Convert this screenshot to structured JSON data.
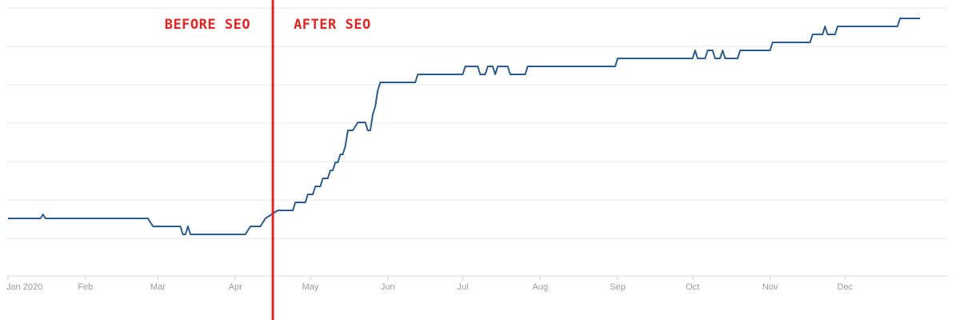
{
  "chart_data": {
    "type": "line",
    "title": "",
    "xlabel": "",
    "ylabel": "",
    "x_ticks": [
      "Jan 2020",
      "Feb",
      "Mar",
      "Apr",
      "May",
      "Jun",
      "Jul",
      "Aug",
      "Sep",
      "Oct",
      "Nov",
      "Dec"
    ],
    "x_range": [
      "2020-01-01",
      "2020-12-31"
    ],
    "y_axis_labels_visible": false,
    "grid": "horizontal",
    "line_color": "#2b5a8c",
    "marker_color": "#e02424",
    "marker_date": "2020-04-16",
    "annotations": {
      "before": "BEFORE SEO",
      "after": "AFTER SEO"
    },
    "series": [
      {
        "values": [
          [
            "2020-01-01",
            72
          ],
          [
            "2020-01-14",
            72
          ],
          [
            "2020-01-15",
            77
          ],
          [
            "2020-01-16",
            72
          ],
          [
            "2020-02-26",
            72
          ],
          [
            "2020-02-28",
            62
          ],
          [
            "2020-03-10",
            62
          ],
          [
            "2020-03-11",
            52
          ],
          [
            "2020-03-12",
            52
          ],
          [
            "2020-03-13",
            62
          ],
          [
            "2020-03-14",
            52
          ],
          [
            "2020-04-05",
            52
          ],
          [
            "2020-04-07",
            62
          ],
          [
            "2020-04-11",
            62
          ],
          [
            "2020-04-13",
            72
          ],
          [
            "2020-04-18",
            82
          ],
          [
            "2020-04-24",
            82
          ],
          [
            "2020-04-25",
            92
          ],
          [
            "2020-04-29",
            92
          ],
          [
            "2020-04-30",
            102
          ],
          [
            "2020-05-02",
            102
          ],
          [
            "2020-05-03",
            112
          ],
          [
            "2020-05-05",
            112
          ],
          [
            "2020-05-06",
            122
          ],
          [
            "2020-05-08",
            122
          ],
          [
            "2020-05-09",
            132
          ],
          [
            "2020-05-10",
            132
          ],
          [
            "2020-05-11",
            142
          ],
          [
            "2020-05-12",
            142
          ],
          [
            "2020-05-13",
            152
          ],
          [
            "2020-05-14",
            152
          ],
          [
            "2020-05-15",
            162
          ],
          [
            "2020-05-16",
            182
          ],
          [
            "2020-05-18",
            182
          ],
          [
            "2020-05-20",
            192
          ],
          [
            "2020-05-23",
            192
          ],
          [
            "2020-05-24",
            182
          ],
          [
            "2020-05-25",
            182
          ],
          [
            "2020-05-26",
            202
          ],
          [
            "2020-05-27",
            212
          ],
          [
            "2020-05-28",
            232
          ],
          [
            "2020-05-29",
            242
          ],
          [
            "2020-06-01",
            242
          ],
          [
            "2020-06-12",
            242
          ],
          [
            "2020-06-13",
            252
          ],
          [
            "2020-07-01",
            252
          ],
          [
            "2020-07-02",
            262
          ],
          [
            "2020-07-07",
            262
          ],
          [
            "2020-07-08",
            252
          ],
          [
            "2020-07-10",
            252
          ],
          [
            "2020-07-11",
            262
          ],
          [
            "2020-07-13",
            262
          ],
          [
            "2020-07-14",
            252
          ],
          [
            "2020-07-15",
            262
          ],
          [
            "2020-07-19",
            262
          ],
          [
            "2020-07-20",
            252
          ],
          [
            "2020-07-26",
            252
          ],
          [
            "2020-07-27",
            262
          ],
          [
            "2020-08-31",
            262
          ],
          [
            "2020-09-01",
            272
          ],
          [
            "2020-10-01",
            272
          ],
          [
            "2020-10-02",
            282
          ],
          [
            "2020-10-03",
            272
          ],
          [
            "2020-10-06",
            272
          ],
          [
            "2020-10-07",
            282
          ],
          [
            "2020-10-09",
            282
          ],
          [
            "2020-10-10",
            272
          ],
          [
            "2020-10-12",
            272
          ],
          [
            "2020-10-13",
            282
          ],
          [
            "2020-10-14",
            272
          ],
          [
            "2020-10-19",
            272
          ],
          [
            "2020-10-20",
            282
          ],
          [
            "2020-11-01",
            282
          ],
          [
            "2020-11-02",
            292
          ],
          [
            "2020-11-17",
            292
          ],
          [
            "2020-11-18",
            302
          ],
          [
            "2020-11-22",
            302
          ],
          [
            "2020-11-23",
            312
          ],
          [
            "2020-11-24",
            302
          ],
          [
            "2020-11-27",
            302
          ],
          [
            "2020-11-28",
            312
          ],
          [
            "2020-12-22",
            312
          ],
          [
            "2020-12-23",
            322
          ],
          [
            "2020-12-31",
            322
          ]
        ]
      }
    ]
  }
}
